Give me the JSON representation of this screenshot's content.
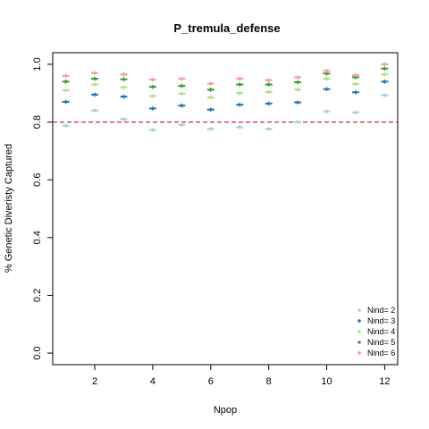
{
  "chart_data": {
    "type": "scatter",
    "title": "P_tremula_defense",
    "xlabel": "Npop",
    "ylabel": "% Genetic Diveristy Captured",
    "xlim": [
      0.55,
      12.45
    ],
    "ylim": [
      -0.04,
      1.04
    ],
    "x_ticks": [
      2,
      4,
      6,
      8,
      10,
      12
    ],
    "x_tick_labels": [
      "2",
      "4",
      "6",
      "8",
      "10",
      "12"
    ],
    "y_ticks": [
      0.0,
      0.2,
      0.4,
      0.6,
      0.8,
      1.0
    ],
    "y_tick_labels": [
      "0.0",
      "0.2",
      "0.4",
      "0.6",
      "0.8",
      "1.0"
    ],
    "reference_line": {
      "y": 0.8,
      "color": "#b22222",
      "style": "dashed"
    },
    "legend_position": "bottom-right",
    "x": [
      1,
      2,
      3,
      4,
      5,
      6,
      7,
      8,
      9,
      10,
      11,
      12
    ],
    "series": [
      {
        "name": "Nind= 2",
        "color": "#a6cee3",
        "values": [
          0.787,
          0.84,
          0.81,
          0.773,
          0.79,
          0.776,
          0.782,
          0.776,
          0.8,
          0.837,
          0.833,
          0.893
        ]
      },
      {
        "name": "Nind= 3",
        "color": "#1f78b4",
        "values": [
          0.87,
          0.895,
          0.888,
          0.847,
          0.857,
          0.843,
          0.86,
          0.864,
          0.868,
          0.914,
          0.903,
          0.94
        ]
      },
      {
        "name": "Nind= 4",
        "color": "#b2df8a",
        "values": [
          0.91,
          0.93,
          0.92,
          0.89,
          0.898,
          0.885,
          0.9,
          0.904,
          0.912,
          0.95,
          0.932,
          0.965
        ]
      },
      {
        "name": "Nind= 5",
        "color": "#33a02c",
        "values": [
          0.94,
          0.95,
          0.948,
          0.922,
          0.925,
          0.912,
          0.93,
          0.93,
          0.938,
          0.968,
          0.955,
          0.985
        ]
      },
      {
        "name": "Nind= 6",
        "color": "#fb9a99",
        "values": [
          0.96,
          0.97,
          0.965,
          0.947,
          0.95,
          0.933,
          0.95,
          0.945,
          0.955,
          0.977,
          0.962,
          1.0
        ]
      }
    ]
  }
}
